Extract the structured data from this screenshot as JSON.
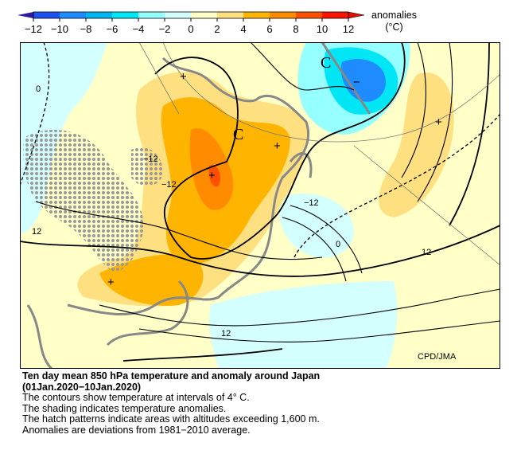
{
  "colorbar": {
    "ticks": [
      "−12",
      "−10",
      "−8",
      "−6",
      "−4",
      "−2",
      "0",
      "2",
      "4",
      "6",
      "8",
      "10",
      "12"
    ],
    "colors": [
      "#2c1aa0",
      "#1e50f0",
      "#1e8cff",
      "#00b4f0",
      "#00e6f5",
      "#96ffff",
      "#d4ffff",
      "#ffffc8",
      "#ffe080",
      "#ffb400",
      "#ff8c00",
      "#ff5000",
      "#ff1400",
      "#e01000"
    ],
    "label": "anomalies",
    "unit": "(°C)"
  },
  "map": {
    "contour_labels": [
      "0",
      "−12",
      "−12",
      "−12",
      "0",
      "12",
      "12",
      "12"
    ],
    "centers": [
      "C",
      "C"
    ],
    "markers": [
      "+",
      "+",
      "+",
      "+",
      "−",
      "+"
    ],
    "credit": "CPD/JMA",
    "land_color": "#888888",
    "hatch_color": "#999999"
  },
  "caption": {
    "title": "Ten day mean 850 hPa temperature and anomaly around Japan",
    "period": "(01Jan.2020−10Jan.2020)",
    "lines": [
      "The contours show temperature at intervals of 4° C.",
      "The shading indicates temperature anomalies.",
      "The hatch patterns indicate areas with altitudes exceeding 1,600 m.",
      "Anomalies are deviations from 1981−2010 average."
    ]
  }
}
